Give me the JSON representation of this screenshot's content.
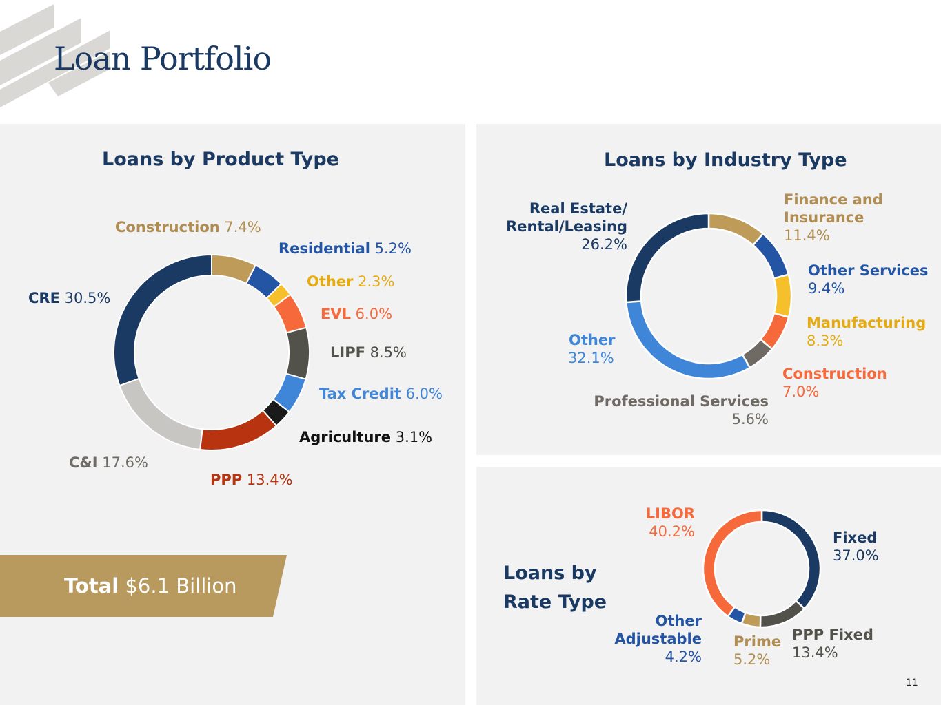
{
  "page": {
    "title": "Loan Portfolio",
    "page_number": "11"
  },
  "total": {
    "label": "Total",
    "value": "$6.1 Billion"
  },
  "colors": {
    "navy": "#1b3a63",
    "gold": "#bf9b5a",
    "banner": "#b89a5e"
  },
  "chart_data": [
    {
      "type": "pie",
      "title": "Loans by Product Type",
      "slices": [
        {
          "name": "Construction",
          "value": 7.4,
          "label": "7.4%",
          "color": "#bf9b5a"
        },
        {
          "name": "Residential",
          "value": 5.2,
          "label": "5.2%",
          "color": "#2455a4"
        },
        {
          "name": "Other",
          "value": 2.3,
          "label": "2.3%",
          "color": "#f6c02d"
        },
        {
          "name": "EVL",
          "value": 6.0,
          "label": "6.0%",
          "color": "#f6693a"
        },
        {
          "name": "LIPF",
          "value": 8.5,
          "label": "8.5%",
          "color": "#52514a"
        },
        {
          "name": "Tax Credit",
          "value": 6.0,
          "label": "6.0%",
          "color": "#3f86d9"
        },
        {
          "name": "Agriculture",
          "value": 3.1,
          "label": "3.1%",
          "color": "#1a1a1a"
        },
        {
          "name": "PPP",
          "value": 13.4,
          "label": "13.4%",
          "color": "#b83410"
        },
        {
          "name": "C&I",
          "value": 17.6,
          "label": "17.6%",
          "color": "#c8c6c2"
        },
        {
          "name": "CRE",
          "value": 30.5,
          "label": "30.5%",
          "color": "#1b3a63"
        }
      ]
    },
    {
      "type": "pie",
      "title": "Loans by Industry Type",
      "slices": [
        {
          "name": "Finance and Insurance",
          "name_lines": [
            "Finance and",
            "Insurance"
          ],
          "value": 11.4,
          "label": "11.4%",
          "color": "#bf9b5a"
        },
        {
          "name": "Other Services",
          "name_lines": [
            "Other Services"
          ],
          "value": 9.4,
          "label": "9.4%",
          "color": "#2455a4"
        },
        {
          "name": "Manufacturing",
          "name_lines": [
            "Manufacturing"
          ],
          "value": 8.3,
          "label": "8.3%",
          "color": "#f6c02d"
        },
        {
          "name": "Construction",
          "name_lines": [
            "Construction"
          ],
          "value": 7.0,
          "label": "7.0%",
          "color": "#f6693a"
        },
        {
          "name": "Professional Services",
          "name_lines": [
            "Professional Services"
          ],
          "value": 5.6,
          "label": "5.6%",
          "color": "#6f6a63"
        },
        {
          "name": "Other",
          "name_lines": [
            "Other"
          ],
          "value": 32.1,
          "label": "32.1%",
          "color": "#3f86d9"
        },
        {
          "name": "Real Estate/ Rental/Leasing",
          "name_lines": [
            "Real Estate/",
            "Rental/Leasing"
          ],
          "value": 26.2,
          "label": "26.2%",
          "color": "#1b3a63"
        }
      ]
    },
    {
      "type": "pie",
      "title": "Loans by Rate Type",
      "title_lines": [
        "Loans by",
        "Rate Type"
      ],
      "slices": [
        {
          "name": "Fixed",
          "name_lines": [
            "Fixed"
          ],
          "value": 37.0,
          "label": "37.0%",
          "color": "#1b3a63"
        },
        {
          "name": "PPP Fixed",
          "name_lines": [
            "PPP Fixed"
          ],
          "value": 13.4,
          "label": "13.4%",
          "color": "#52514a"
        },
        {
          "name": "Prime",
          "name_lines": [
            "Prime"
          ],
          "value": 5.2,
          "label": "5.2%",
          "color": "#bf9b5a"
        },
        {
          "name": "Other Adjustable",
          "name_lines": [
            "Other",
            "Adjustable"
          ],
          "value": 4.2,
          "label": "4.2%",
          "color": "#2455a4"
        },
        {
          "name": "LIBOR",
          "name_lines": [
            "LIBOR"
          ],
          "value": 40.2,
          "label": "40.2%",
          "color": "#f6693a"
        }
      ]
    }
  ]
}
